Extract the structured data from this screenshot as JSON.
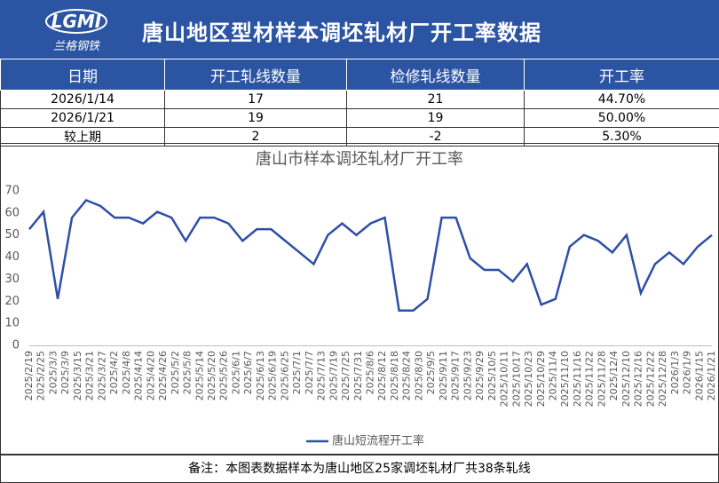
{
  "header": {
    "title": "唐山地区型材样本调坯轧材厂开工率数据",
    "logo_mark": "LGMI",
    "logo_text": "兰格钢铁"
  },
  "table": {
    "columns": [
      "日期",
      "开工轧线数量",
      "检修轧线数量",
      "开工率"
    ],
    "rows": [
      [
        "2026/1/14",
        "17",
        "21",
        "44.70%"
      ],
      [
        "2026/1/21",
        "19",
        "19",
        "50.00%"
      ],
      [
        "较上期",
        "2",
        "-2",
        "5.30%"
      ]
    ]
  },
  "chart_data": {
    "type": "line",
    "title": "唐山市样本调坯轧材厂开工率",
    "x": [
      "2025/2/19",
      "2025/2/26",
      "2025/3/5",
      "2025/3/12",
      "2025/3/19",
      "2025/3/26",
      "2025/4/2",
      "2025/4/9",
      "2025/4/16",
      "2025/4/23",
      "2025/4/30",
      "2025/5/7",
      "2025/5/14",
      "2025/5/21",
      "2025/5/28",
      "2025/6/4",
      "2025/6/11",
      "2025/6/18",
      "2025/6/25",
      "2025/7/2",
      "2025/7/9",
      "2025/7/16",
      "2025/7/23",
      "2025/7/30",
      "2025/8/6",
      "2025/8/13",
      "2025/8/20",
      "2025/8/27",
      "2025/9/3",
      "2025/9/10",
      "2025/9/17",
      "2025/9/24",
      "2025/10/1",
      "2025/10/8",
      "2025/10/15",
      "2025/10/22",
      "2025/10/29",
      "2025/11/5",
      "2025/11/12",
      "2025/11/19",
      "2025/11/26",
      "2025/12/3",
      "2025/12/10",
      "2025/12/17",
      "2025/12/24",
      "2025/12/31",
      "2026/1/7",
      "2026/1/14",
      "2026/1/21"
    ],
    "xticks": [
      "2025/2/19",
      "2025/2/25",
      "2025/3/3",
      "2025/3/9",
      "2025/3/15",
      "2025/3/21",
      "2025/3/27",
      "2025/4/2",
      "2025/4/8",
      "2025/4/14",
      "2025/4/20",
      "2025/4/26",
      "2025/5/2",
      "2025/5/8",
      "2025/5/14",
      "2025/5/20",
      "2025/5/26",
      "2025/6/1",
      "2025/6/7",
      "2025/6/13",
      "2025/6/19",
      "2025/6/25",
      "2025/7/1",
      "2025/7/7",
      "2025/7/13",
      "2025/7/19",
      "2025/7/25",
      "2025/7/31",
      "2025/8/6",
      "2025/8/12",
      "2025/8/18",
      "2025/8/24",
      "2025/8/30",
      "2025/9/5",
      "2025/9/11",
      "2025/9/17",
      "2025/9/23",
      "2025/9/29",
      "2025/10/5",
      "2025/10/11",
      "2025/10/17",
      "2025/10/23",
      "2025/10/29",
      "2025/11/4",
      "2025/11/10",
      "2025/11/16",
      "2025/11/22",
      "2025/11/28",
      "2025/12/4",
      "2025/12/10",
      "2025/12/16",
      "2025/12/22",
      "2025/12/28",
      "2026/1/3",
      "2026/1/9",
      "2026/1/15",
      "2026/1/21"
    ],
    "series": [
      {
        "name": "唐山短流程开工率",
        "color": "#2e4fa8",
        "values": [
          52.63,
          60.53,
          21.05,
          57.89,
          65.79,
          63.16,
          57.89,
          57.89,
          55.26,
          60.53,
          57.89,
          47.37,
          57.89,
          57.89,
          55.26,
          47.37,
          52.63,
          52.63,
          47.37,
          42.11,
          36.84,
          50.0,
          55.26,
          50.0,
          55.26,
          57.89,
          15.79,
          15.79,
          21.05,
          57.89,
          57.89,
          39.47,
          34.21,
          34.21,
          28.95,
          36.84,
          18.42,
          21.05,
          44.74,
          50.0,
          47.37,
          42.11,
          50.0,
          23.68,
          36.84,
          42.11,
          36.84,
          44.7,
          50.0
        ]
      }
    ],
    "ylim": [
      0,
      70
    ],
    "yticks": [
      0,
      10,
      20,
      30,
      40,
      50,
      60,
      70
    ],
    "grid": false,
    "legend": "bottom"
  },
  "footer": {
    "note": "备注：本图表数据样本为唐山地区25家调坯轧材厂共38条轧线"
  }
}
